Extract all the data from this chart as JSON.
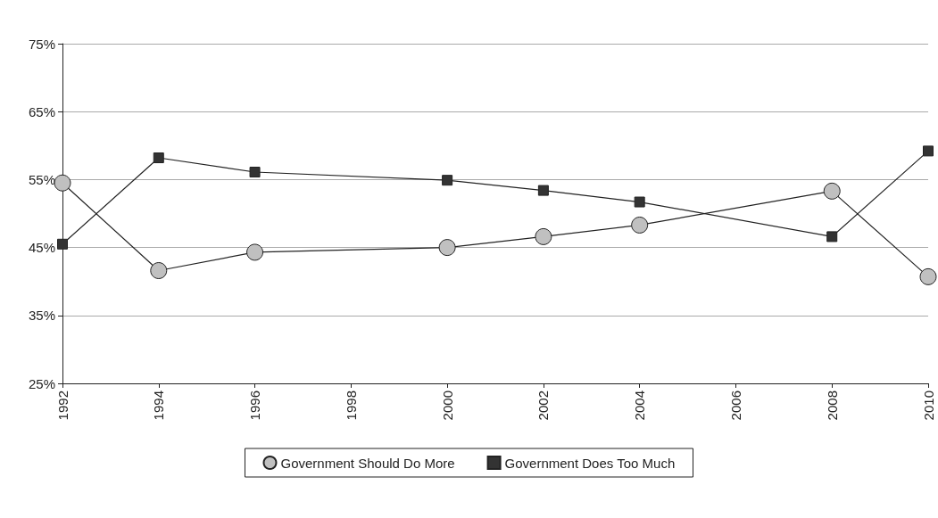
{
  "chart_data": {
    "type": "line",
    "x": [
      1992,
      1994,
      1996,
      2000,
      2002,
      2004,
      2008,
      2010
    ],
    "series": [
      {
        "name": "Government Should Do More",
        "color": "#c0c0c0",
        "marker": "circle",
        "values": [
          54.5,
          41.6,
          44.3,
          45,
          46.6,
          48.3,
          53.3,
          40.7
        ]
      },
      {
        "name": "Government Does Too Much",
        "color": "#333333",
        "marker": "square",
        "values": [
          45.5,
          58.2,
          56.1,
          54.9,
          53.4,
          51.7,
          46.6,
          59.2
        ]
      }
    ],
    "xlim": [
      1992,
      2010
    ],
    "xticks": [
      1992,
      1994,
      1996,
      1998,
      2000,
      2002,
      2004,
      2006,
      2008,
      2010
    ],
    "ylim": [
      25,
      75
    ],
    "yticks": [
      {
        "value": 25,
        "label": "25%"
      },
      {
        "value": 35,
        "label": "35%"
      },
      {
        "value": 45,
        "label": "45%"
      },
      {
        "value": 55,
        "label": "55%"
      },
      {
        "value": 65,
        "label": "65%"
      },
      {
        "value": 75,
        "label": "75%"
      }
    ],
    "grid": "y",
    "legend": "bottom",
    "line_style": "solid"
  }
}
